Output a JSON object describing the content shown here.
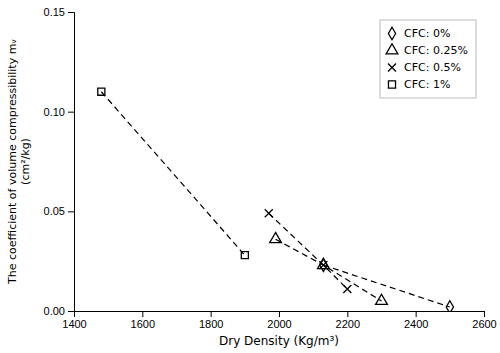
{
  "chart_data": {
    "type": "line",
    "x_label": "Dry Density (Kg/m³)",
    "y_label": "The coefficient of volume compressibility mᵥ\n(cm²/kg)",
    "series": [
      {
        "name": "CFC: 0%",
        "x": [
          2130,
          2500
        ],
        "values": [
          0.023,
          0.002
        ],
        "marker": "diamond",
        "color": "black",
        "line_style": "dashed"
      },
      {
        "name": "CFC: 0.25%",
        "x": [
          1990,
          2130,
          2300
        ],
        "values": [
          0.036,
          0.023,
          0.005
        ],
        "marker": "triangle",
        "color": "black",
        "line_style": "dashed"
      },
      {
        "name": "CFC: 0.5%",
        "x": [
          1970,
          2130,
          2200
        ],
        "values": [
          0.049,
          0.023,
          0.011
        ],
        "marker": "x",
        "color": "black",
        "line_style": "dashed"
      },
      {
        "name": "CFC: 1%",
        "x": [
          1480,
          1900
        ],
        "values": [
          0.11,
          0.028
        ],
        "marker": "square",
        "color": "black",
        "line_style": "dashed"
      }
    ],
    "xlim": [
      1400,
      2600
    ],
    "ylim": [
      0.0,
      0.15
    ],
    "xticks": [
      1400,
      1600,
      1800,
      2000,
      2200,
      2400,
      2600
    ],
    "yticks": [
      {
        "value": 0.0,
        "label": "0.00"
      },
      0.05,
      {
        "value": 0.1,
        "label": "0.10"
      },
      0.15
    ],
    "grid": false,
    "legend": "upper right"
  }
}
